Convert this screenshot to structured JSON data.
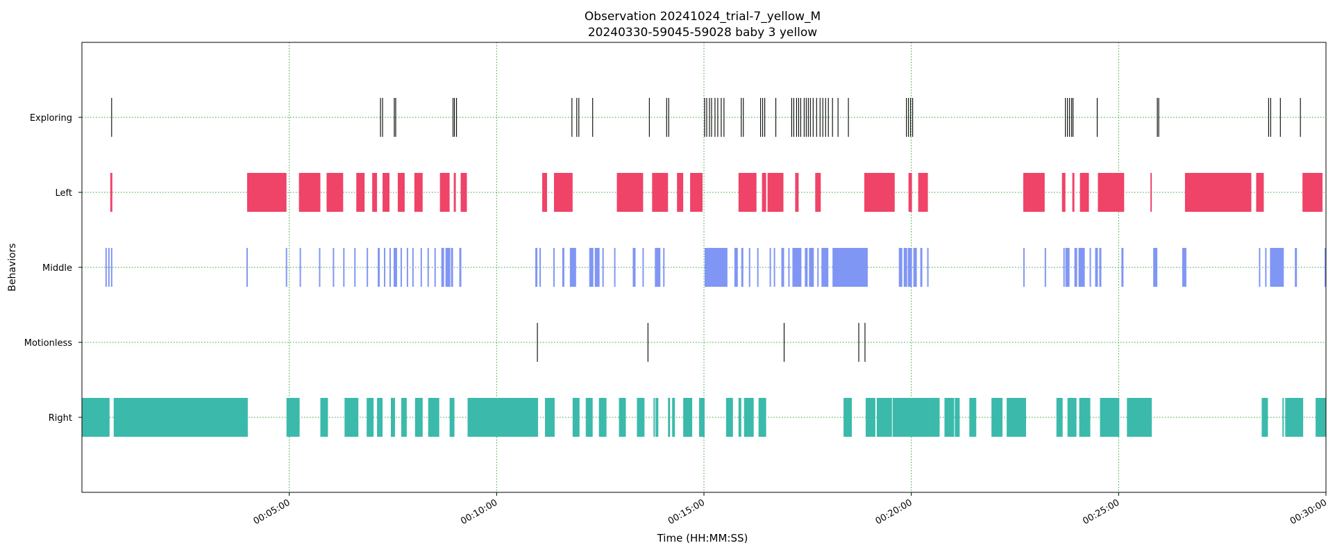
{
  "chart_data": {
    "type": "broken_barh",
    "title": "Observation 20241024_trial-7_yellow_M",
    "subtitle": "20240330-59045-59028 baby 3 yellow",
    "xlabel": "Time (HH:MM:SS)",
    "ylabel": "Behaviors",
    "xlim_seconds": [
      0,
      1800
    ],
    "x_ticks": [
      {
        "seconds": 300,
        "label": "00:05:00"
      },
      {
        "seconds": 600,
        "label": "00:10:00"
      },
      {
        "seconds": 900,
        "label": "00:15:00"
      },
      {
        "seconds": 1200,
        "label": "00:20:00"
      },
      {
        "seconds": 1500,
        "label": "00:25:00"
      },
      {
        "seconds": 1800,
        "label": "00:30:00"
      }
    ],
    "grid": true,
    "grid_color": "#2ca02c",
    "categories": [
      "Exploring",
      "Left",
      "Middle",
      "Motionless",
      "Right"
    ],
    "series": [
      {
        "name": "Exploring",
        "color": "#000000",
        "style": "point",
        "events": [
          43,
          432,
          435,
          452,
          454,
          537,
          539,
          542,
          709,
          716,
          719,
          739,
          821,
          846,
          849,
          901,
          904,
          908,
          911,
          916,
          920,
          925,
          929,
          954,
          957,
          982,
          985,
          988,
          1004,
          1027,
          1030,
          1034,
          1037,
          1040,
          1045,
          1048,
          1051,
          1054,
          1058,
          1063,
          1068,
          1072,
          1076,
          1080,
          1086,
          1094,
          1109,
          1193,
          1196,
          1199,
          1202,
          1423,
          1426,
          1429,
          1432,
          1434,
          1469,
          1556,
          1558,
          1717,
          1720,
          1734,
          1763
        ]
      },
      {
        "name": "Left",
        "color": "#ef4368",
        "style": "state",
        "intervals": [
          [
            41,
            44
          ],
          [
            239,
            296
          ],
          [
            314,
            345
          ],
          [
            354,
            378
          ],
          [
            397,
            409
          ],
          [
            420,
            427
          ],
          [
            435,
            445
          ],
          [
            457,
            467
          ],
          [
            481,
            493
          ],
          [
            518,
            532
          ],
          [
            538,
            541
          ],
          [
            548,
            557
          ],
          [
            666,
            673
          ],
          [
            683,
            710
          ],
          [
            774,
            812
          ],
          [
            825,
            848
          ],
          [
            861,
            870
          ],
          [
            880,
            898
          ],
          [
            950,
            976
          ],
          [
            984,
            990
          ],
          [
            992,
            1015
          ],
          [
            1032,
            1037
          ],
          [
            1061,
            1069
          ],
          [
            1132,
            1176
          ],
          [
            1196,
            1201
          ],
          [
            1210,
            1224
          ],
          [
            1362,
            1393
          ],
          [
            1418,
            1423
          ],
          [
            1433,
            1436
          ],
          [
            1444,
            1457
          ],
          [
            1470,
            1508
          ],
          [
            1546,
            1548
          ],
          [
            1596,
            1692
          ],
          [
            1699,
            1710
          ],
          [
            1766,
            1795
          ]
        ]
      },
      {
        "name": "Middle",
        "color": "#8096f4",
        "style": "state",
        "intervals": [
          [
            34,
            36
          ],
          [
            38,
            40
          ],
          [
            42,
            44
          ],
          [
            238,
            240
          ],
          [
            295,
            297
          ],
          [
            315,
            317
          ],
          [
            343,
            345
          ],
          [
            363,
            365
          ],
          [
            378,
            380
          ],
          [
            394,
            396
          ],
          [
            412,
            414
          ],
          [
            428,
            431
          ],
          [
            437,
            439
          ],
          [
            445,
            447
          ],
          [
            451,
            456
          ],
          [
            461,
            463
          ],
          [
            470,
            472
          ],
          [
            478,
            480
          ],
          [
            490,
            492
          ],
          [
            500,
            502
          ],
          [
            510,
            512
          ],
          [
            520,
            524
          ],
          [
            526,
            533
          ],
          [
            534,
            537
          ],
          [
            546,
            549
          ],
          [
            656,
            659
          ],
          [
            662,
            664
          ],
          [
            682,
            684
          ],
          [
            695,
            698
          ],
          [
            706,
            715
          ],
          [
            734,
            740
          ],
          [
            742,
            749
          ],
          [
            753,
            755
          ],
          [
            770,
            772
          ],
          [
            797,
            801
          ],
          [
            811,
            813
          ],
          [
            829,
            837
          ],
          [
            841,
            843
          ],
          [
            901,
            934
          ],
          [
            944,
            949
          ],
          [
            954,
            957
          ],
          [
            965,
            967
          ],
          [
            977,
            979
          ],
          [
            995,
            997
          ],
          [
            1001,
            1003
          ],
          [
            1012,
            1016
          ],
          [
            1022,
            1024
          ],
          [
            1028,
            1041
          ],
          [
            1046,
            1050
          ],
          [
            1052,
            1059
          ],
          [
            1064,
            1066
          ],
          [
            1070,
            1080
          ],
          [
            1086,
            1137
          ],
          [
            1182,
            1187
          ],
          [
            1189,
            1194
          ],
          [
            1195,
            1201
          ],
          [
            1203,
            1208
          ],
          [
            1213,
            1216
          ],
          [
            1223,
            1225
          ],
          [
            1362,
            1364
          ],
          [
            1393,
            1395
          ],
          [
            1420,
            1422
          ],
          [
            1423,
            1429
          ],
          [
            1436,
            1440
          ],
          [
            1442,
            1451
          ],
          [
            1458,
            1460
          ],
          [
            1466,
            1470
          ],
          [
            1472,
            1475
          ],
          [
            1504,
            1507
          ],
          [
            1550,
            1556
          ],
          [
            1592,
            1598
          ],
          [
            1703,
            1705
          ],
          [
            1712,
            1714
          ],
          [
            1719,
            1739
          ],
          [
            1755,
            1758
          ],
          [
            1798,
            1800
          ]
        ]
      },
      {
        "name": "Motionless",
        "color": "#000000",
        "style": "point",
        "events": [
          659,
          819,
          1016,
          1124,
          1133
        ]
      },
      {
        "name": "Right",
        "color": "#3bbaab",
        "style": "state",
        "intervals": [
          [
            0,
            40
          ],
          [
            46,
            240
          ],
          [
            296,
            315
          ],
          [
            345,
            356
          ],
          [
            380,
            400
          ],
          [
            412,
            422
          ],
          [
            427,
            435
          ],
          [
            447,
            453
          ],
          [
            462,
            470
          ],
          [
            482,
            493
          ],
          [
            501,
            517
          ],
          [
            532,
            539
          ],
          [
            558,
            660
          ],
          [
            670,
            684
          ],
          [
            710,
            720
          ],
          [
            729,
            739
          ],
          [
            748,
            759
          ],
          [
            777,
            787
          ],
          [
            803,
            814
          ],
          [
            827,
            829
          ],
          [
            830,
            834
          ],
          [
            848,
            851
          ],
          [
            854,
            858
          ],
          [
            870,
            883
          ],
          [
            893,
            901
          ],
          [
            932,
            942
          ],
          [
            950,
            954
          ],
          [
            958,
            972
          ],
          [
            979,
            990
          ],
          [
            1102,
            1114
          ],
          [
            1134,
            1148
          ],
          [
            1150,
            1159
          ],
          [
            1158,
            1172
          ],
          [
            1173,
            1187
          ],
          [
            1178,
            1227
          ],
          [
            1227,
            1241
          ],
          [
            1248,
            1262
          ],
          [
            1263,
            1270
          ],
          [
            1284,
            1294
          ],
          [
            1316,
            1332
          ],
          [
            1338,
            1366
          ],
          [
            1365,
            1366
          ],
          [
            1410,
            1419
          ],
          [
            1426,
            1439
          ],
          [
            1443,
            1451
          ],
          [
            1448,
            1459
          ],
          [
            1473,
            1501
          ],
          [
            1512,
            1548
          ],
          [
            1707,
            1716
          ],
          [
            1737,
            1739
          ],
          [
            1741,
            1767
          ],
          [
            1785,
            1800
          ]
        ]
      }
    ]
  }
}
